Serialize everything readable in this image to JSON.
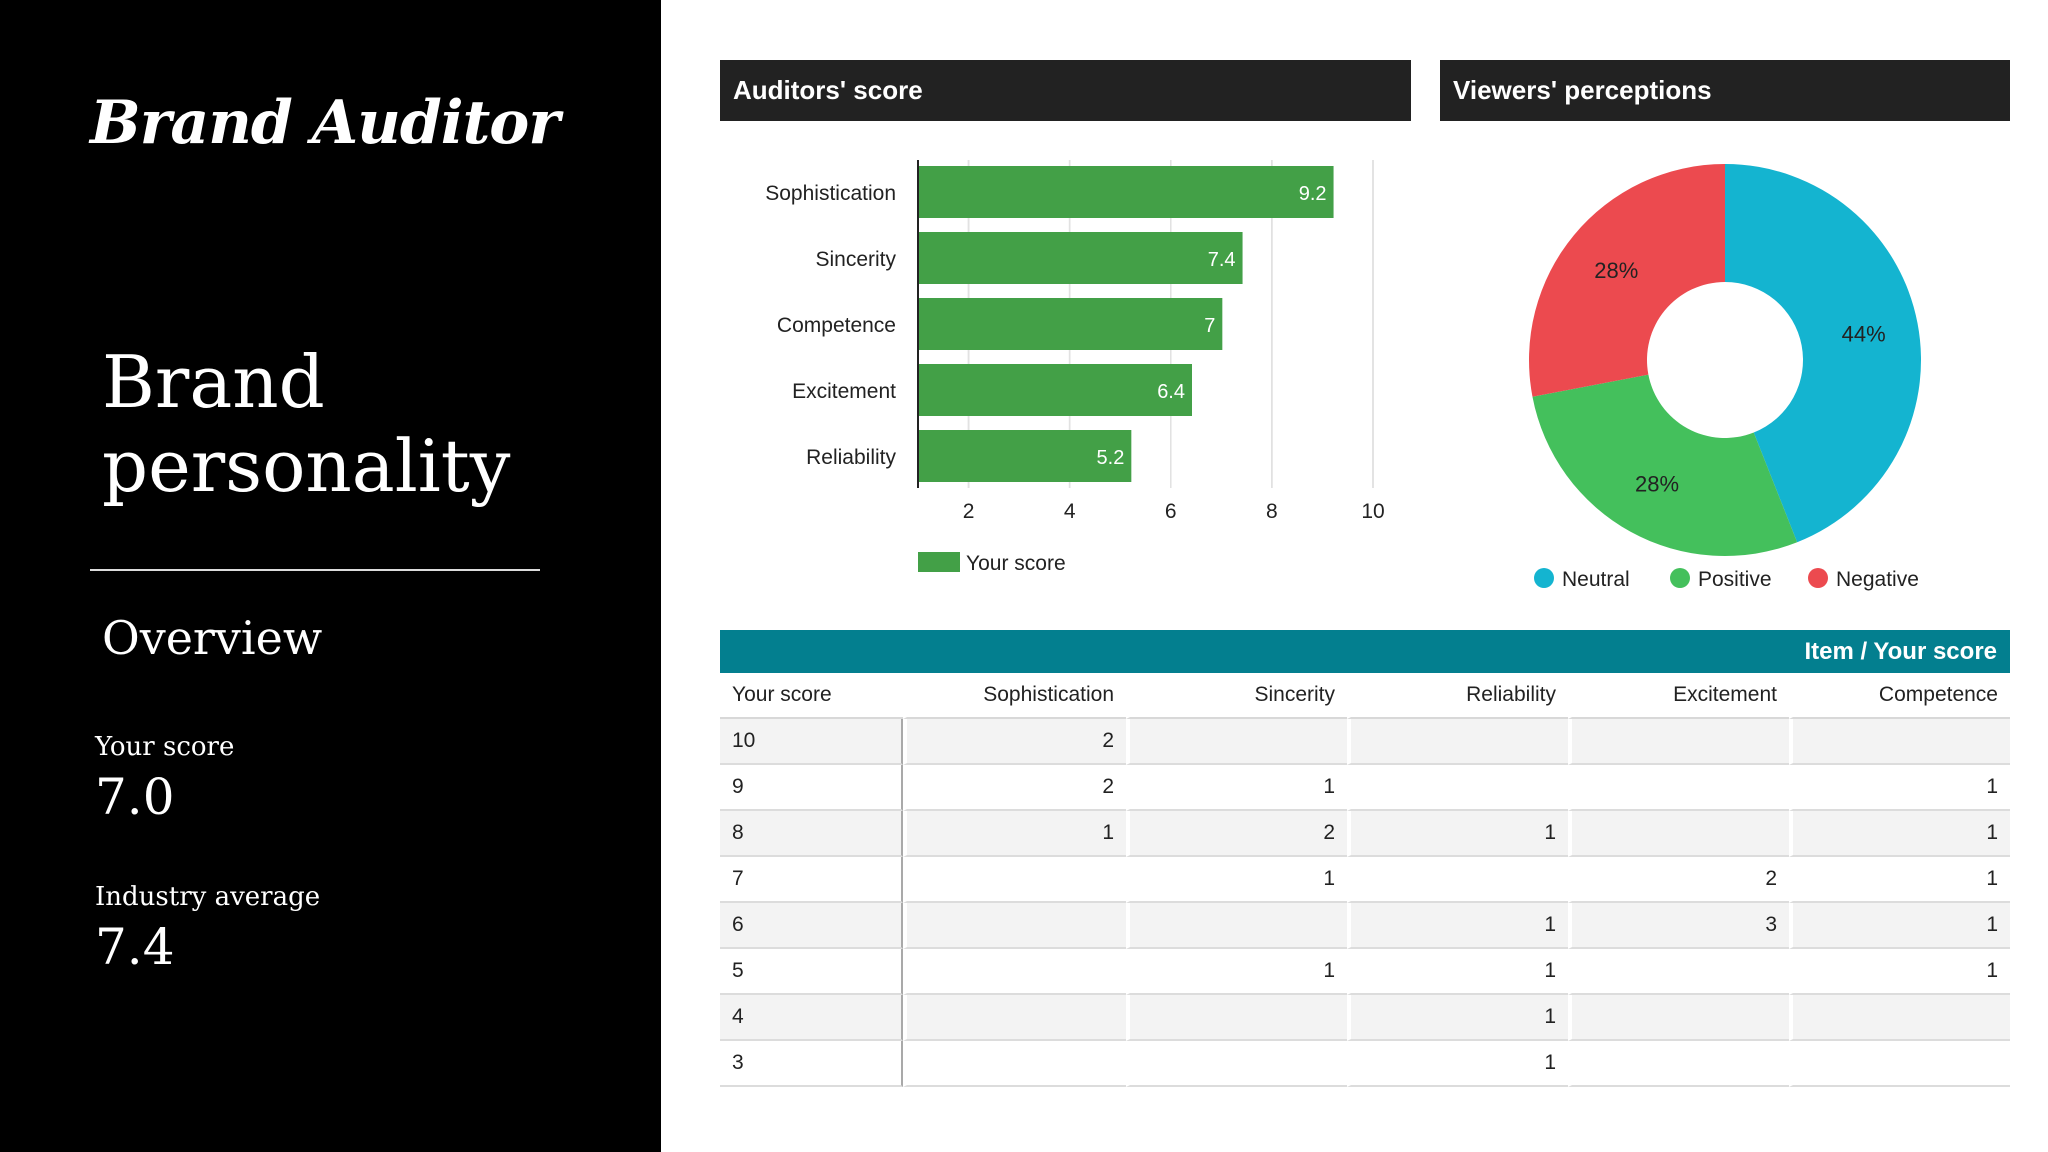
{
  "sidebar": {
    "logo": "Brand Auditor",
    "title": "Brand personality",
    "section": "Overview",
    "metrics": [
      {
        "label": "Your score",
        "value": "7.0"
      },
      {
        "label": "Industry average",
        "value": "7.4"
      }
    ]
  },
  "panels": {
    "auditors_title": "Auditors' score",
    "viewers_title": "Viewers' perceptions"
  },
  "table": {
    "band_label": "Item / Your score",
    "columns": [
      "Your score",
      "Sophistication",
      "Sincerity",
      "Reliability",
      "Excitement",
      "Competence"
    ],
    "rows": [
      [
        "10",
        "2",
        "",
        "",
        "",
        ""
      ],
      [
        "9",
        "2",
        "1",
        "",
        "",
        "1"
      ],
      [
        "8",
        "1",
        "2",
        "1",
        "",
        "1"
      ],
      [
        "7",
        "",
        "1",
        "",
        "2",
        "1"
      ],
      [
        "6",
        "",
        "",
        "1",
        "3",
        "1"
      ],
      [
        "5",
        "",
        "1",
        "1",
        "",
        "1"
      ],
      [
        "4",
        "",
        "",
        "1",
        "",
        ""
      ],
      [
        "3",
        "",
        "",
        "1",
        "",
        ""
      ]
    ]
  },
  "colors": {
    "bar": "#43a047",
    "neutral": "#14b4d0",
    "positive": "#44c05c",
    "negative": "#ec4a4f",
    "table_band": "#037f8f"
  },
  "chart_data": [
    {
      "type": "bar",
      "orientation": "horizontal",
      "categories": [
        "Sophistication",
        "Sincerity",
        "Competence",
        "Excitement",
        "Reliability"
      ],
      "series": [
        {
          "name": "Your score",
          "values": [
            9.2,
            7.4,
            7,
            6.4,
            5.2
          ]
        }
      ],
      "xlim": [
        1,
        10
      ],
      "xticks": [
        2,
        4,
        6,
        8,
        10
      ],
      "grid": true,
      "legend": "bottom-left"
    },
    {
      "type": "pie",
      "style": "donut",
      "labels": [
        "Neutral",
        "Positive",
        "Negative"
      ],
      "values": [
        44,
        28,
        28
      ],
      "value_labels": [
        "44%",
        "28%",
        "28%"
      ],
      "legend": "bottom"
    }
  ]
}
